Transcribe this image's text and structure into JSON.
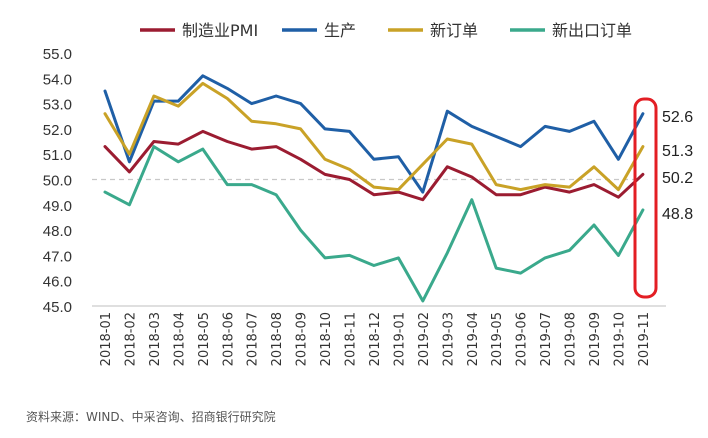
{
  "chart_data": {
    "type": "line",
    "x": [
      "2018-01",
      "2018-02",
      "2018-03",
      "2018-04",
      "2018-05",
      "2018-06",
      "2018-07",
      "2018-08",
      "2018-09",
      "2018-10",
      "2018-11",
      "2018-12",
      "2019-01",
      "2019-02",
      "2019-03",
      "2019-04",
      "2019-05",
      "2019-06",
      "2019-07",
      "2019-08",
      "2019-09",
      "2019-10",
      "2019-11"
    ],
    "ylim": [
      45.0,
      55.0
    ],
    "yticks": [
      "45.0",
      "46.0",
      "47.0",
      "48.0",
      "49.0",
      "50.0",
      "51.0",
      "52.0",
      "53.0",
      "54.0",
      "55.0"
    ],
    "reference_line": 50.0,
    "grid": false,
    "legend_position": "top",
    "series": [
      {
        "name": "制造业PMI",
        "color": "#9b1c31",
        "values": [
          51.3,
          50.3,
          51.5,
          51.4,
          51.9,
          51.5,
          51.2,
          51.3,
          50.8,
          50.2,
          50.0,
          49.4,
          49.5,
          49.2,
          50.5,
          50.1,
          49.4,
          49.4,
          49.7,
          49.5,
          49.8,
          49.3,
          50.2
        ]
      },
      {
        "name": "生产",
        "color": "#1f5fa6",
        "values": [
          53.5,
          50.7,
          53.1,
          53.1,
          54.1,
          53.6,
          53.0,
          53.3,
          53.0,
          52.0,
          51.9,
          50.8,
          50.9,
          49.5,
          52.7,
          52.1,
          51.7,
          51.3,
          52.1,
          51.9,
          52.3,
          50.8,
          52.6
        ]
      },
      {
        "name": "新订单",
        "color": "#c9a227",
        "values": [
          52.6,
          51.0,
          53.3,
          52.9,
          53.8,
          53.2,
          52.3,
          52.2,
          52.0,
          50.8,
          50.4,
          49.7,
          49.6,
          50.6,
          51.6,
          51.4,
          49.8,
          49.6,
          49.8,
          49.7,
          50.5,
          49.6,
          51.3
        ]
      },
      {
        "name": "新出口订单",
        "color": "#3aa98c",
        "values": [
          49.5,
          49.0,
          51.3,
          50.7,
          51.2,
          49.8,
          49.8,
          49.4,
          48.0,
          46.9,
          47.0,
          46.6,
          46.9,
          45.2,
          47.1,
          49.2,
          46.5,
          46.3,
          46.9,
          47.2,
          48.2,
          47.0,
          48.8
        ]
      }
    ],
    "end_labels": [
      "52.6",
      "51.3",
      "50.2",
      "48.8"
    ],
    "highlight_color": "#e31e24",
    "source_note": "资料来源：WIND、中采咨询、招商银行研究院"
  }
}
